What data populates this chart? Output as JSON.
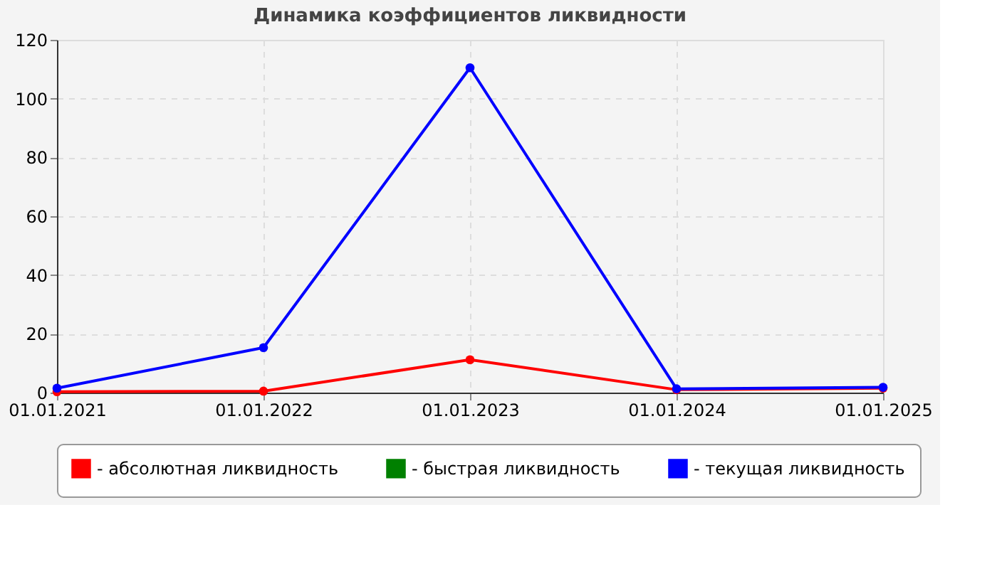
{
  "chart_data": {
    "type": "line",
    "title": "Динамика коэффициентов ликвидности",
    "categories": [
      "01.01.2021",
      "01.01.2022",
      "01.01.2023",
      "01.01.2024",
      "01.01.2025"
    ],
    "series": [
      {
        "name": "- абсолютная ликвидность",
        "color": "#ff0000",
        "values": [
          0.3,
          0.5,
          11.2,
          1.0,
          1.5
        ]
      },
      {
        "name": "- быстрая ликвидность",
        "color": "#008000",
        "values": [
          null,
          null,
          null,
          null,
          null
        ]
      },
      {
        "name": "- текущая ликвидность",
        "color": "#0000ff",
        "values": [
          1.5,
          15.3,
          110.5,
          1.3,
          1.8
        ]
      }
    ],
    "ylim": [
      0,
      120
    ],
    "yticks": [
      0,
      20,
      40,
      60,
      80,
      100,
      120
    ],
    "grid": true,
    "legend": "bottom",
    "marker": "circle",
    "line_style": "solid"
  }
}
